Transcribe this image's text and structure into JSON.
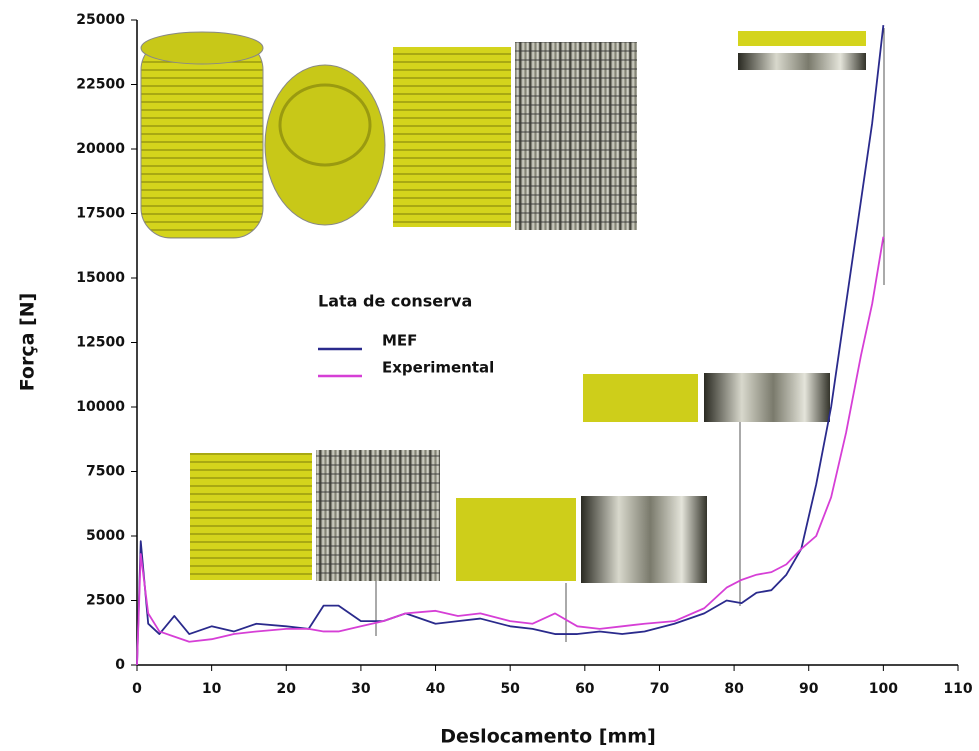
{
  "chart_data": {
    "type": "line",
    "x_label": "Deslocamento [mm]",
    "y_label": "Força [N]",
    "legend_title": "Lata de conserva",
    "x": [
      0,
      0.5,
      1.5,
      3,
      5,
      7,
      10,
      13,
      16,
      20,
      23,
      25,
      27,
      30,
      33,
      36,
      40,
      43,
      46,
      50,
      53,
      56,
      59,
      62,
      65,
      68,
      72,
      76,
      79,
      81,
      83,
      85,
      87,
      89,
      91,
      93,
      95,
      97,
      98.5,
      100
    ],
    "series": [
      {
        "name": "MEF",
        "color": "#2a2a8c",
        "values": [
          0,
          4800,
          1600,
          1200,
          1900,
          1200,
          1500,
          1300,
          1600,
          1500,
          1400,
          2300,
          2300,
          1700,
          1700,
          2000,
          1600,
          1700,
          1800,
          1500,
          1400,
          1200,
          1200,
          1300,
          1200,
          1300,
          1600,
          2000,
          2500,
          2400,
          2800,
          2900,
          3500,
          4500,
          7000,
          10000,
          14000,
          18000,
          21000,
          24800
        ]
      },
      {
        "name": "Experimental",
        "color": "#d63fd6",
        "values": [
          0,
          4300,
          2000,
          1300,
          1100,
          900,
          1000,
          1200,
          1300,
          1400,
          1400,
          1300,
          1300,
          1500,
          1700,
          2000,
          2100,
          1900,
          2000,
          1700,
          1600,
          2000,
          1500,
          1400,
          1500,
          1600,
          1700,
          2200,
          3000,
          3300,
          3500,
          3600,
          3900,
          4500,
          5000,
          6500,
          9000,
          12000,
          14000,
          16600
        ]
      }
    ],
    "xlim": [
      0,
      110
    ],
    "xticks": [
      0,
      10,
      20,
      30,
      40,
      50,
      60,
      70,
      80,
      90,
      100,
      110
    ],
    "ylim": [
      0,
      25000
    ],
    "yticks": [
      0,
      2500,
      5000,
      7500,
      10000,
      12500,
      15000,
      17500,
      20000,
      22500,
      25000
    ]
  }
}
